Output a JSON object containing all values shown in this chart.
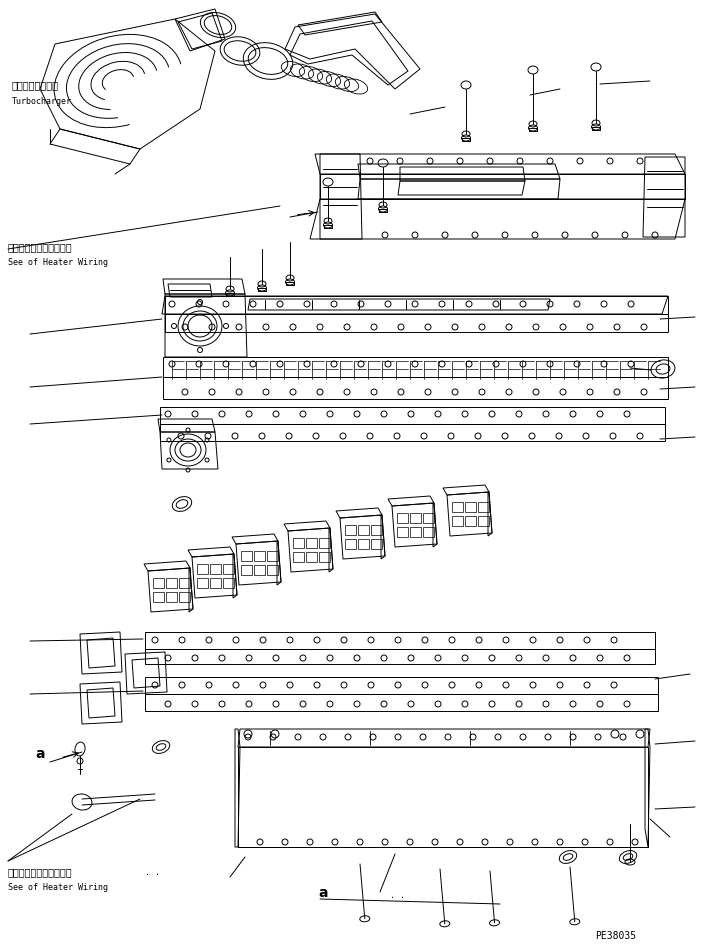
{
  "bg_color": "#ffffff",
  "line_color": "#000000",
  "fig_width": 7.01,
  "fig_height": 9.45,
  "dpi": 100,
  "labels": {
    "turbocharger_jp": "ターボチャージャ",
    "turbocharger_en": "Turbocharger",
    "heater_wiring_jp_1": "ヒータワイヤリング参照",
    "heater_wiring_en_1": "See of Heater Wiring",
    "heater_wiring_jp_2": "ヒータワイヤリング参照",
    "heater_wiring_en_2": "See of Heater Wiring",
    "ref_a_1": "a",
    "ref_a_2": "a",
    "part_number": "PE38035"
  }
}
